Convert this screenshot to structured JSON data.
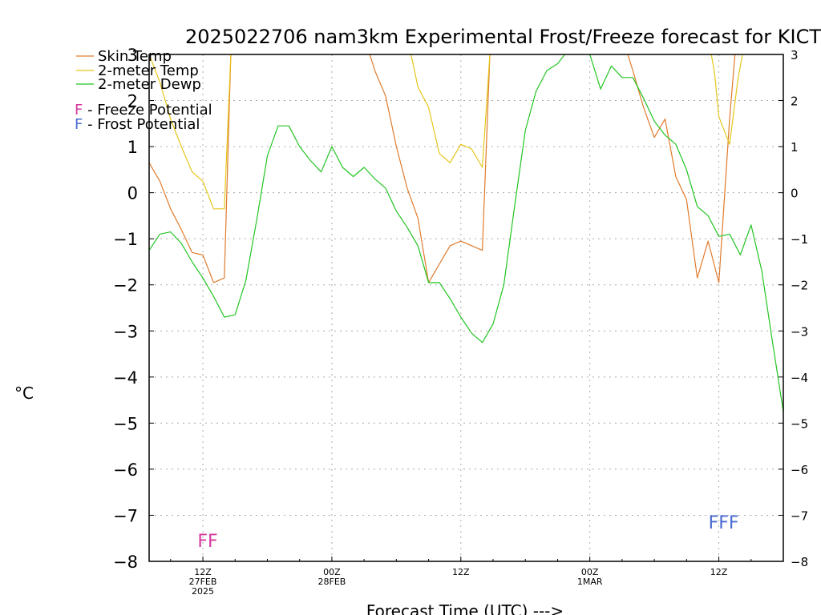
{
  "title": "2025022706 nam3km Experimental Frost/Freeze forecast for KICT",
  "ylabel_unit": "°C",
  "xlabel": "Forecast Time (UTC) --->",
  "legend": [
    {
      "label": "Skin Temp",
      "color": "#e07b2c"
    },
    {
      "label": "2-meter Temp",
      "color": "#e6c619"
    },
    {
      "label": "2-meter Dewp",
      "color": "#22c522"
    }
  ],
  "potential_legend": [
    {
      "letter": "F",
      "text": " - Freeze Potential",
      "color": "#d43a9e"
    },
    {
      "letter": "F",
      "text": " - Frost Potential",
      "color": "#4a6bd1"
    }
  ],
  "markers": [
    {
      "text": "FF",
      "hour": 12,
      "y": -7.55,
      "color": "#d43a9e"
    },
    {
      "text": "FFF",
      "hour": 60,
      "y": -7.15,
      "color": "#4a6bd1"
    }
  ],
  "chart_data": {
    "type": "line",
    "title": "2025022706 nam3km Experimental Frost/Freeze forecast for KICT",
    "xlabel": "Forecast Time (UTC) --->",
    "ylabel": "°C",
    "xlim": [
      7,
      66
    ],
    "ylim": [
      -8,
      3
    ],
    "yticks": [
      -8,
      -7,
      -6,
      -5,
      -4,
      -3,
      -2,
      -1,
      0,
      1,
      2,
      3
    ],
    "xticks": [
      {
        "hour": 12,
        "lines": [
          "12Z",
          "27FEB",
          "2025"
        ]
      },
      {
        "hour": 24,
        "lines": [
          "00Z",
          "28FEB"
        ]
      },
      {
        "hour": 36,
        "lines": [
          "12Z"
        ]
      },
      {
        "hour": 48,
        "lines": [
          "00Z",
          "1MAR"
        ]
      },
      {
        "hour": 60,
        "lines": [
          "12Z"
        ]
      }
    ],
    "grid": true,
    "legend_position": "top-left",
    "series": [
      {
        "name": "Skin Temp",
        "color": "#e07b2c",
        "x": [
          7,
          8,
          9,
          10,
          11,
          12,
          13,
          14,
          14.6,
          15.2,
          27,
          28,
          29,
          30,
          31,
          32,
          33,
          34,
          35,
          36,
          37,
          38,
          38.7,
          39.2,
          51,
          52,
          53,
          54,
          55,
          56,
          57,
          58,
          59,
          60,
          61,
          61.5,
          61.9
        ],
        "y": [
          0.65,
          0.25,
          -0.35,
          -0.8,
          -1.3,
          -1.35,
          -1.95,
          -1.85,
          3,
          3.4,
          3.4,
          2.65,
          2.1,
          1.0,
          0.1,
          -0.55,
          -1.95,
          -1.55,
          -1.15,
          -1.05,
          -1.15,
          -1.25,
          3,
          3.4,
          3.4,
          2.65,
          1.85,
          1.2,
          1.6,
          0.35,
          -0.15,
          -1.85,
          -1.05,
          -1.95,
          1.6,
          3,
          3.4
        ]
      },
      {
        "name": "2-meter Temp",
        "color": "#e6c619",
        "x": [
          7,
          8,
          9,
          10,
          11,
          12,
          13,
          14,
          14.6,
          15.2,
          31,
          32,
          33,
          34,
          35,
          36,
          37,
          38,
          38.7,
          39.2,
          59,
          59.6,
          60,
          61,
          61.8,
          62.2
        ],
        "y": [
          3,
          2.4,
          1.6,
          1.0,
          0.45,
          0.25,
          -0.35,
          -0.35,
          3,
          3.4,
          3.4,
          2.3,
          1.85,
          0.85,
          0.65,
          1.05,
          0.95,
          0.55,
          3,
          3.4,
          3.4,
          2.6,
          1.65,
          1.05,
          2.5,
          3
        ]
      },
      {
        "name": "2-meter Dewp",
        "color": "#22c522",
        "x": [
          7,
          8,
          9,
          10,
          11,
          12,
          13,
          14,
          15,
          16,
          17,
          18,
          19,
          20,
          21,
          22,
          23,
          24,
          25,
          26,
          27,
          28,
          29,
          30,
          31,
          32,
          33,
          34,
          35,
          36,
          37,
          38,
          39,
          40,
          41,
          42,
          43,
          44,
          45,
          46,
          47,
          48,
          49,
          50,
          51,
          52,
          53,
          54,
          55,
          56,
          57,
          58,
          59,
          60,
          61,
          62,
          63,
          64,
          65,
          66
        ],
        "y": [
          -1.25,
          -0.9,
          -0.85,
          -1.1,
          -1.5,
          -1.85,
          -2.25,
          -2.7,
          -2.65,
          -1.9,
          -0.6,
          0.8,
          1.45,
          1.45,
          1.0,
          0.7,
          0.45,
          1.0,
          0.55,
          0.35,
          0.55,
          0.3,
          0.1,
          -0.4,
          -0.75,
          -1.15,
          -1.95,
          -1.95,
          -2.3,
          -2.7,
          -3.05,
          -3.25,
          -2.85,
          -2.0,
          -0.3,
          1.35,
          2.2,
          2.65,
          2.8,
          3.1,
          3.2,
          3.0,
          2.25,
          2.75,
          2.5,
          2.5,
          2.05,
          1.55,
          1.25,
          1.05,
          0.5,
          -0.3,
          -0.5,
          -0.95,
          -0.9,
          -1.35,
          -0.7,
          -1.7,
          -3.25,
          -4.75
        ]
      }
    ]
  }
}
